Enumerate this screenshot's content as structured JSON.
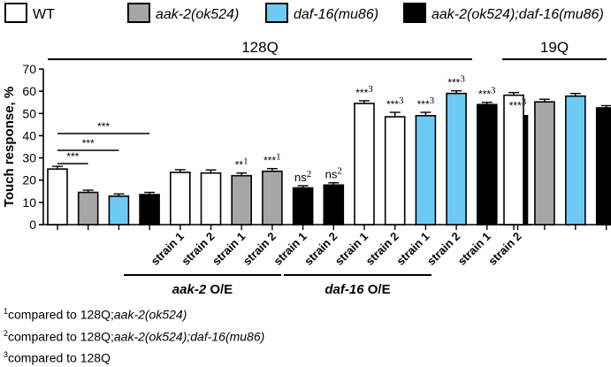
{
  "chart_data": {
    "type": "bar",
    "ylabel": "Touch response, %",
    "ylim": [
      0,
      70
    ],
    "yticks": [
      0,
      10,
      20,
      30,
      40,
      50,
      60,
      70
    ],
    "grid": false,
    "legend_position": "top",
    "legend": [
      {
        "label": "WT",
        "color": "#ffffff",
        "italic": false
      },
      {
        "label": "aak-2(ok524)",
        "color": "#a6a6a6",
        "italic": true
      },
      {
        "label": "daf-16(mu86)",
        "color": "#6ccaf4",
        "italic": true
      },
      {
        "label": "aak-2(ok524);daf-16(mu86)",
        "color": "#000000",
        "italic": true
      }
    ],
    "groups": [
      {
        "label": "128Q",
        "bars": [
          0,
          13
        ]
      },
      {
        "label": "19Q",
        "bars": [
          14,
          17
        ]
      }
    ],
    "subgroups": [
      {
        "label": "aak-2",
        "suffix": "O/E",
        "bars": [
          4,
          8
        ]
      },
      {
        "label": "daf-16",
        "suffix": "O/E",
        "bars": [
          9,
          13
        ]
      }
    ],
    "bars": [
      {
        "value": 25,
        "error": 1.2,
        "color": "#ffffff",
        "xlabel": "",
        "annotation": "",
        "ann_sup": ""
      },
      {
        "value": 14.5,
        "error": 1.0,
        "color": "#a6a6a6",
        "xlabel": "",
        "annotation": "",
        "ann_sup": ""
      },
      {
        "value": 12.8,
        "error": 1.0,
        "color": "#6ccaf4",
        "xlabel": "",
        "annotation": "",
        "ann_sup": ""
      },
      {
        "value": 13.5,
        "error": 1.0,
        "color": "#000000",
        "xlabel": "",
        "annotation": "",
        "ann_sup": ""
      },
      {
        "value": 23.5,
        "error": 1.2,
        "color": "#ffffff",
        "xlabel": "strain 1",
        "annotation": "",
        "ann_sup": ""
      },
      {
        "value": 23.2,
        "error": 1.4,
        "color": "#ffffff",
        "xlabel": "strain 2",
        "annotation": "",
        "ann_sup": ""
      },
      {
        "value": 22,
        "error": 1.2,
        "color": "#a6a6a6",
        "xlabel": "strain 1",
        "annotation": "**",
        "ann_sup": "1"
      },
      {
        "value": 24,
        "error": 1.2,
        "color": "#a6a6a6",
        "xlabel": "strain 2",
        "annotation": "***",
        "ann_sup": "1"
      },
      {
        "value": 16.5,
        "error": 1.0,
        "color": "#000000",
        "xlabel": "strain 1",
        "annotation": "ns",
        "ann_sup": "2"
      },
      {
        "value": 17.8,
        "error": 1.0,
        "color": "#000000",
        "xlabel": "strain 2",
        "annotation": "ns",
        "ann_sup": "2"
      },
      {
        "value": 54.5,
        "error": 1.2,
        "color": "#ffffff",
        "xlabel": "strain 1",
        "annotation": "***",
        "ann_sup": "3"
      },
      {
        "value": 48.5,
        "error": 2.0,
        "color": "#ffffff",
        "xlabel": "strain 2",
        "annotation": "***",
        "ann_sup": "3"
      },
      {
        "value": 49,
        "error": 1.5,
        "color": "#6ccaf4",
        "xlabel": "strain 1",
        "annotation": "***",
        "ann_sup": "3"
      },
      {
        "value": 59,
        "error": 1.2,
        "color": "#6ccaf4",
        "xlabel": "strain 2",
        "annotation": "***",
        "ann_sup": "3"
      },
      {
        "value": 54,
        "error": 1.0,
        "color": "#000000",
        "xlabel": "strain 1",
        "annotation": "***",
        "ann_sup": "3"
      },
      {
        "value": 49,
        "error": 1.0,
        "color": "#000000",
        "xlabel": "strain 2",
        "annotation": "***",
        "ann_sup": "3"
      },
      {
        "value": 58.2,
        "error": 1.2,
        "color": "#ffffff",
        "xlabel": "",
        "annotation": "",
        "ann_sup": ""
      },
      {
        "value": 55.2,
        "error": 1.2,
        "color": "#a6a6a6",
        "xlabel": "",
        "annotation": "",
        "ann_sup": ""
      },
      {
        "value": 57.8,
        "error": 1.2,
        "color": "#6ccaf4",
        "xlabel": "",
        "annotation": "",
        "ann_sup": ""
      },
      {
        "value": 52.5,
        "error": 1.0,
        "color": "#000000",
        "xlabel": "",
        "annotation": "",
        "ann_sup": ""
      }
    ],
    "comparisons": [
      {
        "from": 0,
        "to": 1,
        "label": "***"
      },
      {
        "from": 0,
        "to": 2,
        "label": "***"
      },
      {
        "from": 0,
        "to": 3,
        "label": "***"
      }
    ]
  },
  "footnotes": [
    {
      "sup": "1",
      "prefix": "compared to 128Q;",
      "italic": "aak-2(ok524)"
    },
    {
      "sup": "2",
      "prefix": "compared to 128Q;",
      "italic": "aak-2(ok524);daf-16(mu86)"
    },
    {
      "sup": "3",
      "prefix": "compared to 128Q",
      "italic": ""
    }
  ]
}
